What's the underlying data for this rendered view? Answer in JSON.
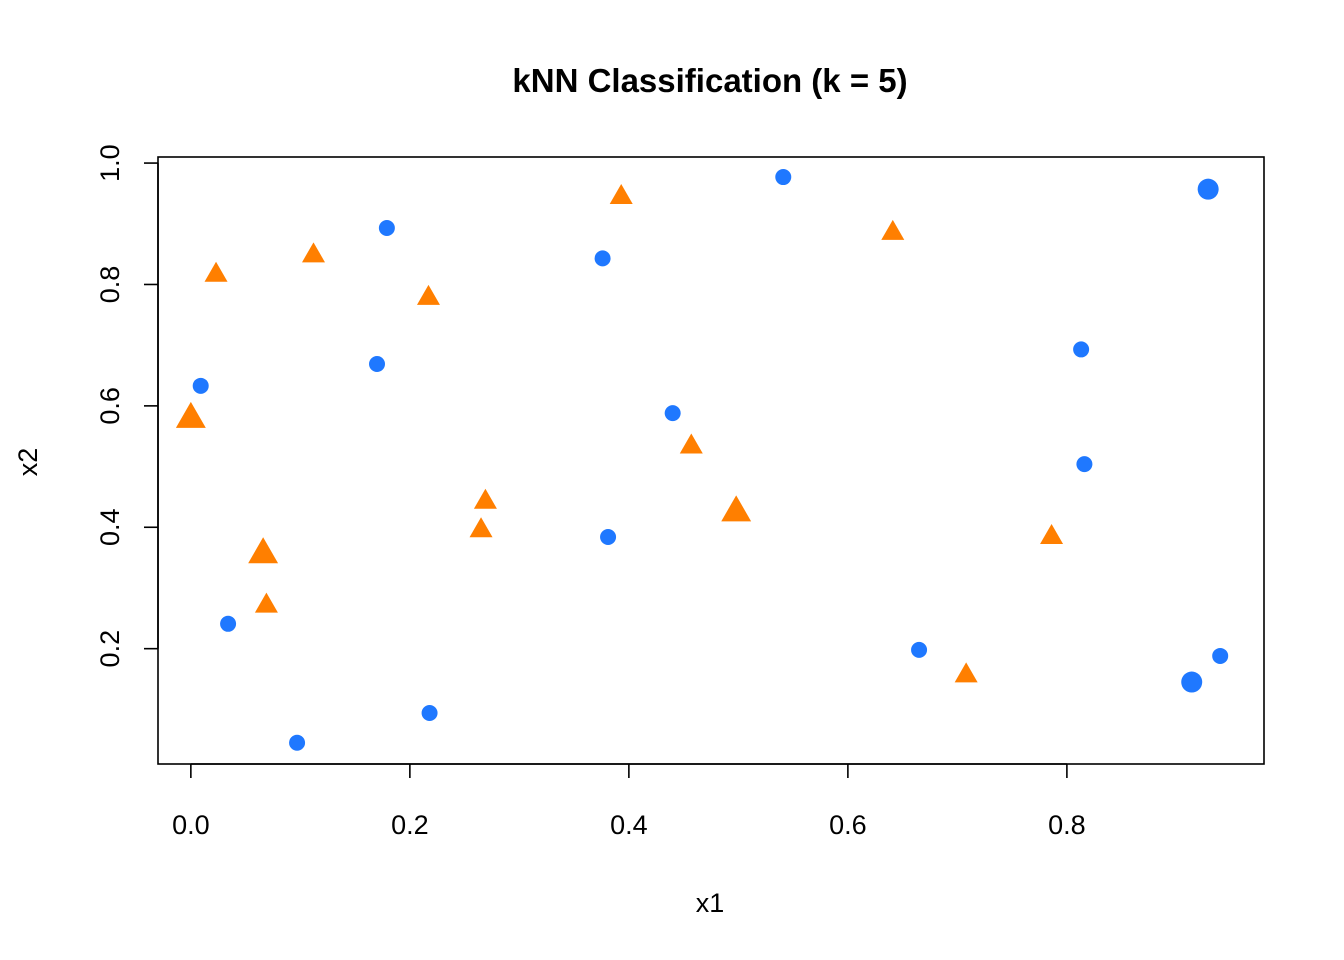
{
  "chart_data": {
    "type": "scatter",
    "title": "kNN Classification (k = 5)",
    "xlabel": "x1",
    "ylabel": "x2",
    "xlim": [
      -0.03,
      0.98
    ],
    "ylim": [
      0.01,
      1.01
    ],
    "xticks": [
      0.0,
      0.2,
      0.4,
      0.6,
      0.8
    ],
    "xtick_labels": [
      "0.0",
      "0.2",
      "0.4",
      "0.6",
      "0.8"
    ],
    "yticks": [
      0.2,
      0.4,
      0.6,
      0.8,
      1.0
    ],
    "ytick_labels": [
      "0.2",
      "0.4",
      "0.6",
      "0.8",
      "1.0"
    ],
    "grid": false,
    "series": [
      {
        "marker": "circle",
        "color": "#1f78ff",
        "points": [
          {
            "x": 0.009,
            "y": 0.633
          },
          {
            "x": 0.034,
            "y": 0.241
          },
          {
            "x": 0.097,
            "y": 0.045
          },
          {
            "x": 0.17,
            "y": 0.669
          },
          {
            "x": 0.179,
            "y": 0.893
          },
          {
            "x": 0.218,
            "y": 0.094
          },
          {
            "x": 0.376,
            "y": 0.843
          },
          {
            "x": 0.381,
            "y": 0.384
          },
          {
            "x": 0.44,
            "y": 0.588
          },
          {
            "x": 0.541,
            "y": 0.977
          },
          {
            "x": 0.665,
            "y": 0.198
          },
          {
            "x": 0.813,
            "y": 0.693
          },
          {
            "x": 0.816,
            "y": 0.504
          },
          {
            "x": 0.914,
            "y": 0.145,
            "large": true
          },
          {
            "x": 0.929,
            "y": 0.957,
            "large": true
          },
          {
            "x": 0.94,
            "y": 0.188
          }
        ]
      },
      {
        "marker": "triangle",
        "color": "#ff7f00",
        "points": [
          {
            "x": 0.0,
            "y": 0.58,
            "large": true
          },
          {
            "x": 0.023,
            "y": 0.817
          },
          {
            "x": 0.066,
            "y": 0.357,
            "large": true
          },
          {
            "x": 0.069,
            "y": 0.272
          },
          {
            "x": 0.112,
            "y": 0.849
          },
          {
            "x": 0.217,
            "y": 0.779
          },
          {
            "x": 0.265,
            "y": 0.396
          },
          {
            "x": 0.269,
            "y": 0.443
          },
          {
            "x": 0.393,
            "y": 0.945
          },
          {
            "x": 0.457,
            "y": 0.534
          },
          {
            "x": 0.498,
            "y": 0.426,
            "large": true
          },
          {
            "x": 0.641,
            "y": 0.886
          },
          {
            "x": 0.708,
            "y": 0.157
          },
          {
            "x": 0.786,
            "y": 0.385
          }
        ]
      }
    ]
  }
}
